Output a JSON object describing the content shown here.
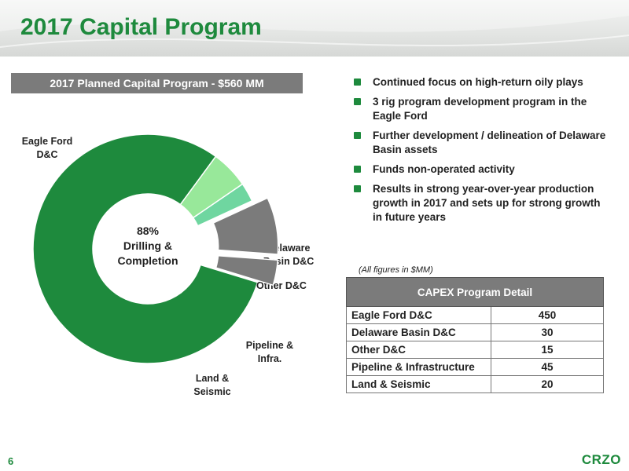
{
  "title": "2017 Capital Program",
  "chart_banner": "2017 Planned Capital Program - $560 MM",
  "bullets": [
    "Continued focus on high-return oily plays",
    "3 rig program development program in the Eagle Ford",
    "Further development / delineation of Delaware Basin assets",
    "Funds non-operated activity",
    "Results in strong year-over-year production growth in 2017 and sets up for strong growth in future years"
  ],
  "note": "(All figures in $MM)",
  "capex_table": {
    "header": "CAPEX Program Detail",
    "rows": [
      {
        "label": "Eagle Ford D&C",
        "value": "450"
      },
      {
        "label": "Delaware Basin D&C",
        "value": "30"
      },
      {
        "label": "Other D&C",
        "value": "15"
      },
      {
        "label": "Pipeline & Infrastructure",
        "value": "45"
      },
      {
        "label": "Land & Seismic",
        "value": "20"
      }
    ]
  },
  "chart_data": {
    "type": "pie",
    "subtype": "donut",
    "slices": [
      {
        "label": [
          "Eagle Ford",
          "D&C"
        ],
        "value": 450,
        "color": "#1e8a3d"
      },
      {
        "label": [
          "Delaware",
          "Basin D&C"
        ],
        "value": 30,
        "color": "#98e89a"
      },
      {
        "label": [
          "Other D&C"
        ],
        "value": 15,
        "color": "#6fd6a0"
      },
      {
        "label": [
          "Pipeline &",
          "Infra."
        ],
        "value": 45,
        "color": "#7b7b7b",
        "exploded": true
      },
      {
        "label": [
          "Land &",
          "Seismic"
        ],
        "value": 20,
        "color": "#7b7b7b",
        "exploded": true
      }
    ],
    "center_label": [
      "88%",
      "Drilling &",
      "Completion"
    ]
  },
  "footer": {
    "page_number": "6",
    "logo": "CRZO"
  },
  "colors": {
    "brand_green": "#1e8a3d",
    "gray": "#7b7b7b"
  }
}
